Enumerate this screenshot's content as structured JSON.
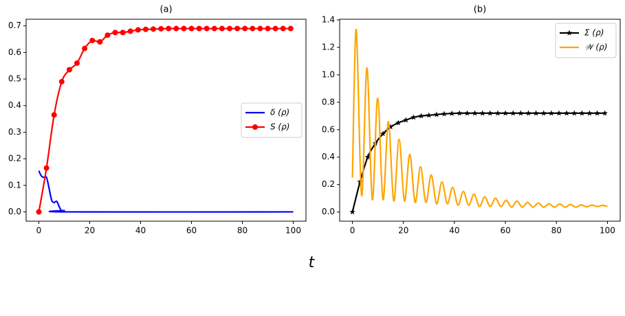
{
  "xlabel": "t",
  "chart_data": [
    {
      "type": "line",
      "title": "(a)",
      "xlim": [
        -5,
        105
      ],
      "xticks": [
        0,
        20,
        40,
        60,
        80,
        100
      ],
      "ylim": [
        -0.035,
        0.725
      ],
      "yticks": [
        {
          "value": 0,
          "label": "0.0"
        },
        0.1,
        0.2,
        0.3,
        0.4,
        0.5,
        0.6,
        0.7
      ],
      "legend": "center right",
      "series": [
        {
          "name": "δ (ρ)",
          "color": "#0000ff",
          "marker": null,
          "x": [
            0,
            1,
            2,
            3,
            4,
            5,
            6,
            7,
            8,
            9,
            10,
            11,
            100
          ],
          "values": [
            0.155,
            0.135,
            0.13,
            0.13,
            0.09,
            0.045,
            0.035,
            0.04,
            0.02,
            0.003,
            0.005,
            0,
            0
          ]
        },
        {
          "name": "S (ρ)",
          "color": "#ff0000",
          "marker": "o",
          "x": [
            0,
            3,
            6,
            9,
            12,
            15,
            18,
            21,
            24,
            27,
            30,
            33,
            36,
            39,
            42,
            45,
            48,
            51,
            54,
            57,
            60,
            63,
            66,
            69,
            72,
            75,
            78,
            81,
            84,
            87,
            90,
            93,
            96,
            99
          ],
          "values": [
            0,
            0.165,
            0.365,
            0.49,
            0.535,
            0.56,
            0.615,
            0.645,
            0.64,
            0.665,
            0.675,
            0.675,
            0.68,
            0.685,
            0.687,
            0.688,
            0.689,
            0.69,
            0.69,
            0.69,
            0.69,
            0.69,
            0.69,
            0.69,
            0.69,
            0.69,
            0.69,
            0.69,
            0.69,
            0.69,
            0.69,
            0.69,
            0.69,
            0.69
          ]
        }
      ]
    },
    {
      "type": "line",
      "title": "(b)",
      "xlim": [
        -5,
        105
      ],
      "xticks": [
        0,
        20,
        40,
        60,
        80,
        100
      ],
      "ylim": [
        -0.067,
        1.405
      ],
      "yticks": [
        {
          "value": 0,
          "label": "0.0"
        },
        0.2,
        0.4,
        0.6,
        0.8,
        {
          "value": 1,
          "label": "1.0"
        },
        1.2,
        1.4
      ],
      "legend": "upper right",
      "series": [
        {
          "name": "Σ (ρ)",
          "color": "#000000",
          "marker": "*",
          "x": [
            0,
            3,
            6,
            9,
            12,
            15,
            18,
            21,
            24,
            27,
            30,
            33,
            36,
            39,
            42,
            45,
            48,
            51,
            54,
            57,
            60,
            63,
            66,
            69,
            72,
            75,
            78,
            81,
            84,
            87,
            90,
            93,
            96,
            99
          ],
          "values": [
            0,
            0.22,
            0.4,
            0.5,
            0.57,
            0.62,
            0.65,
            0.67,
            0.69,
            0.7,
            0.705,
            0.71,
            0.715,
            0.718,
            0.72,
            0.72,
            0.72,
            0.72,
            0.72,
            0.72,
            0.72,
            0.72,
            0.72,
            0.72,
            0.72,
            0.72,
            0.72,
            0.72,
            0.72,
            0.72,
            0.72,
            0.72,
            0.72,
            0.72
          ]
        },
        {
          "name": "𝒲 (ρ)",
          "color": "#ffa500",
          "marker": null,
          "x": [
            0,
            1.5,
            3.6,
            5.7,
            7.8,
            9.9,
            12,
            14.1,
            16.2,
            18.3,
            20.4,
            22.5,
            24.6,
            26.7,
            28.8,
            30.9,
            33,
            35.1,
            37.2,
            39.3,
            41.4,
            43.5,
            45.6,
            47.7,
            49.8,
            51.9,
            54,
            56.1,
            58.2,
            60.3,
            62.4,
            64.5,
            66.6,
            68.7,
            70.8,
            72.9,
            75,
            77.1,
            79.2,
            81.3,
            83.4,
            85.5,
            87.6,
            89.7,
            91.8,
            93.9,
            96,
            98.1,
            100
          ],
          "values": [
            0.25,
            1.33,
            0.12,
            1.05,
            0.09,
            0.83,
            0.09,
            0.66,
            0.08,
            0.53,
            0.08,
            0.42,
            0.07,
            0.33,
            0.07,
            0.27,
            0.06,
            0.22,
            0.06,
            0.18,
            0.05,
            0.15,
            0.05,
            0.13,
            0.04,
            0.11,
            0.04,
            0.1,
            0.04,
            0.085,
            0.035,
            0.08,
            0.035,
            0.07,
            0.035,
            0.065,
            0.035,
            0.06,
            0.035,
            0.058,
            0.035,
            0.055,
            0.035,
            0.052,
            0.038,
            0.05,
            0.04,
            0.048,
            0.04
          ]
        }
      ]
    }
  ]
}
